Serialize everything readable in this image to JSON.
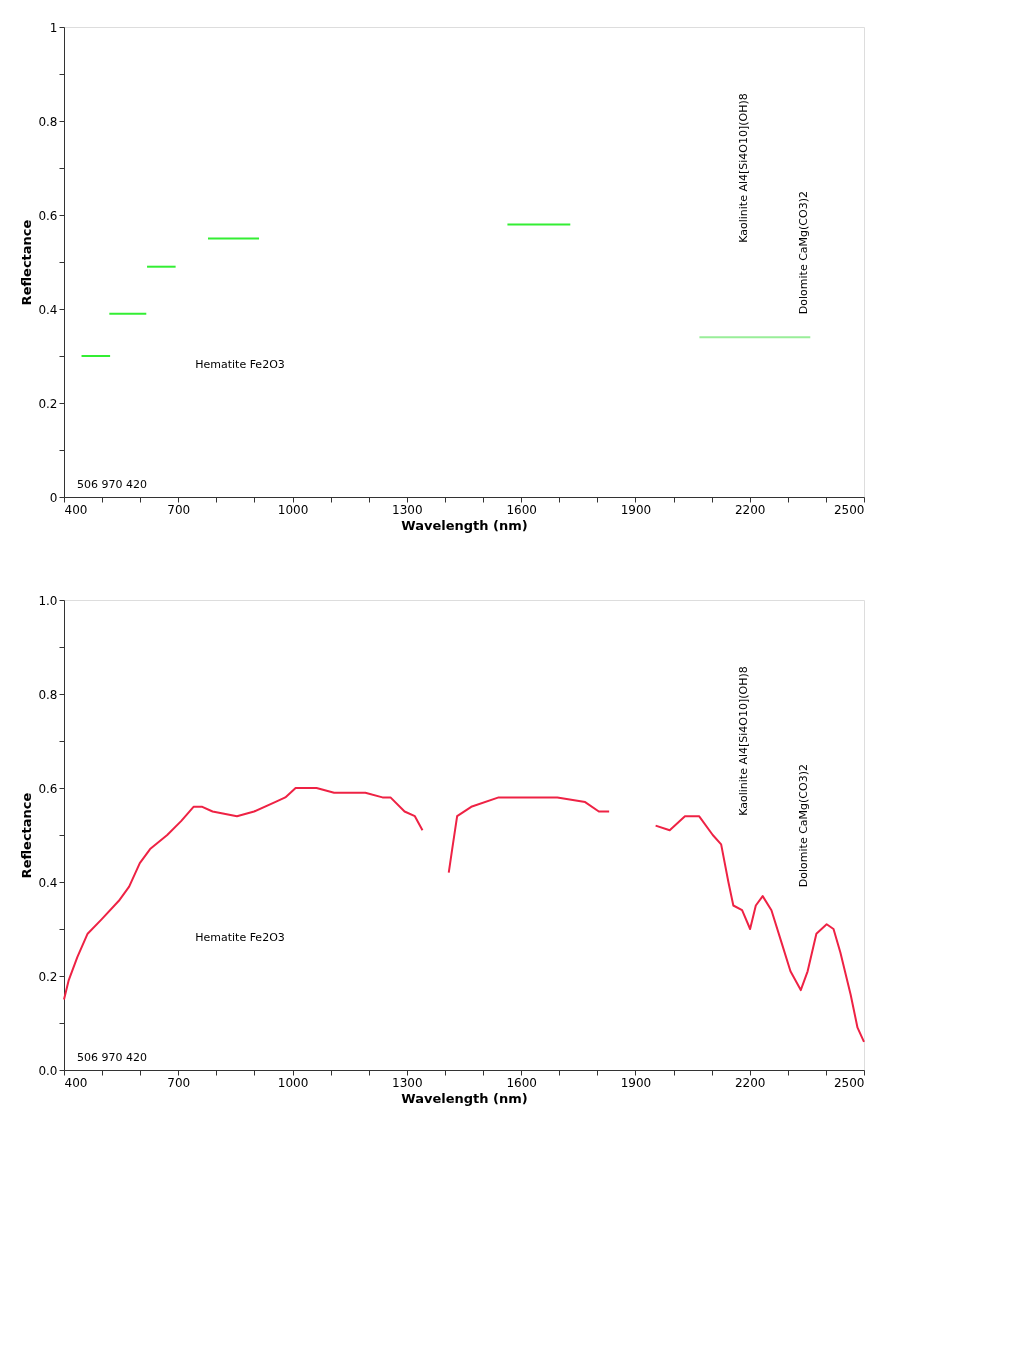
{
  "chart_data": [
    {
      "type": "line",
      "xlabel": "Wavelength (nm)",
      "ylabel": "Reflectance",
      "xlim": [
        400,
        2500
      ],
      "ylim": [
        0,
        1
      ],
      "xticks": [
        400,
        {
          "value": 500,
          "label": null
        },
        {
          "value": 600,
          "label": null
        },
        700,
        {
          "value": 800,
          "label": null
        },
        {
          "value": 900,
          "label": null
        },
        1000,
        {
          "value": 1100,
          "label": null
        },
        {
          "value": 1200,
          "label": null
        },
        1300,
        {
          "value": 1400,
          "label": null
        },
        {
          "value": 1500,
          "label": null
        },
        1600,
        {
          "value": 1700,
          "label": null
        },
        {
          "value": 1800,
          "label": null
        },
        1900,
        {
          "value": 2000,
          "label": null
        },
        {
          "value": 2100,
          "label": null
        },
        2200,
        {
          "value": 2300,
          "label": null
        },
        {
          "value": 2400,
          "label": null
        },
        2500
      ],
      "yticks": [
        0,
        {
          "value": 0.1,
          "label": null
        },
        0.2,
        {
          "value": 0.3,
          "label": null
        },
        0.4,
        {
          "value": 0.5,
          "label": null
        },
        0.6,
        {
          "value": 0.7,
          "label": null
        },
        0.8,
        {
          "value": 0.9,
          "label": null
        },
        1
      ],
      "grid": false,
      "legend": false,
      "series": [
        {
          "color": "#33ee33",
          "x": [
            446,
            521
          ],
          "values": [
            0.3,
            0.3
          ]
        },
        {
          "color": "#33ee33",
          "x": [
            519,
            616
          ],
          "values": [
            0.39,
            0.39
          ]
        },
        {
          "color": "#33ee33",
          "x": [
            618,
            693
          ],
          "values": [
            0.49,
            0.49
          ]
        },
        {
          "color": "#33ee33",
          "x": [
            778,
            912
          ],
          "values": [
            0.55,
            0.55
          ]
        },
        {
          "color": "#33ee33",
          "x": [
            1564,
            1729
          ],
          "values": [
            0.58,
            0.58
          ]
        },
        {
          "color": "#99ee99",
          "x": [
            2068,
            2359
          ],
          "values": [
            0.34,
            0.34
          ]
        }
      ],
      "annotations": [
        "506 970 420",
        "Hematite     Fe2O3",
        "Kaolinite     Al4[Si4O10](OH)8",
        "Dolomite     CaMg(CO3)2"
      ]
    },
    {
      "type": "line",
      "xlabel": "Wavelength (nm)",
      "ylabel": "Reflectance",
      "xlim": [
        400,
        2500
      ],
      "ylim": [
        0,
        1
      ],
      "xticks": [
        400,
        {
          "value": 500,
          "label": null
        },
        {
          "value": 600,
          "label": null
        },
        700,
        {
          "value": 800,
          "label": null
        },
        {
          "value": 900,
          "label": null
        },
        1000,
        {
          "value": 1100,
          "label": null
        },
        {
          "value": 1200,
          "label": null
        },
        1300,
        {
          "value": 1400,
          "label": null
        },
        {
          "value": 1500,
          "label": null
        },
        1600,
        {
          "value": 1700,
          "label": null
        },
        {
          "value": 1800,
          "label": null
        },
        1900,
        {
          "value": 2000,
          "label": null
        },
        {
          "value": 2100,
          "label": null
        },
        2200,
        {
          "value": 2300,
          "label": null
        },
        {
          "value": 2400,
          "label": null
        },
        2500
      ],
      "yticks": [
        {
          "value": 0,
          "label": "0.0"
        },
        {
          "value": 0.1,
          "label": null
        },
        0.2,
        {
          "value": 0.3,
          "label": null
        },
        0.4,
        {
          "value": 0.5,
          "label": null
        },
        0.6,
        {
          "value": 0.7,
          "label": null
        },
        0.8,
        {
          "value": 0.9,
          "label": null
        },
        {
          "value": 1,
          "label": "1.0"
        }
      ],
      "grid": false,
      "legend": false,
      "series": [
        {
          "color": "#ee2244",
          "x": [
            400,
            412,
            435,
            462,
            498,
            544,
            571,
            599,
            626,
            671,
            708,
            740,
            763,
            790,
            854,
            899,
            954,
            981,
            1008,
            1063,
            1109,
            1191,
            1236,
            1257,
            1294,
            1321,
            1341,
            1375,
            1410,
            1419,
            1432,
            1469,
            1541,
            1614,
            1695,
            1768,
            1804,
            1831,
            1890,
            1953,
            1990,
            2030,
            2067,
            2103,
            2125,
            2144,
            2157,
            2180,
            2201,
            2216,
            2234,
            2257,
            2284,
            2307,
            2334,
            2352,
            2375,
            2402,
            2420,
            2438,
            2465,
            2483,
            2500
          ],
          "values": [
            0.15,
            0.19,
            0.24,
            0.29,
            0.32,
            0.36,
            0.39,
            0.44,
            0.47,
            0.5,
            0.53,
            0.56,
            0.56,
            0.55,
            0.54,
            0.55,
            0.57,
            0.58,
            0.6,
            0.6,
            0.59,
            0.59,
            0.58,
            0.58,
            0.55,
            0.54,
            0.51,
            null,
            0.42,
            0.47,
            0.54,
            0.56,
            0.58,
            0.58,
            0.58,
            0.57,
            0.55,
            0.55,
            null,
            0.52,
            0.51,
            0.54,
            0.54,
            0.5,
            0.48,
            0.4,
            0.35,
            0.34,
            0.3,
            0.35,
            0.37,
            0.34,
            0.27,
            0.21,
            0.17,
            0.21,
            0.29,
            0.31,
            0.3,
            0.25,
            0.16,
            0.09,
            0.06
          ]
        }
      ],
      "annotations": [
        "506 970 420",
        "Hematite     Fe2O3",
        "Kaolinite     Al4[Si4O10](OH)8",
        "Dolomite     CaMg(CO3)2"
      ]
    }
  ]
}
